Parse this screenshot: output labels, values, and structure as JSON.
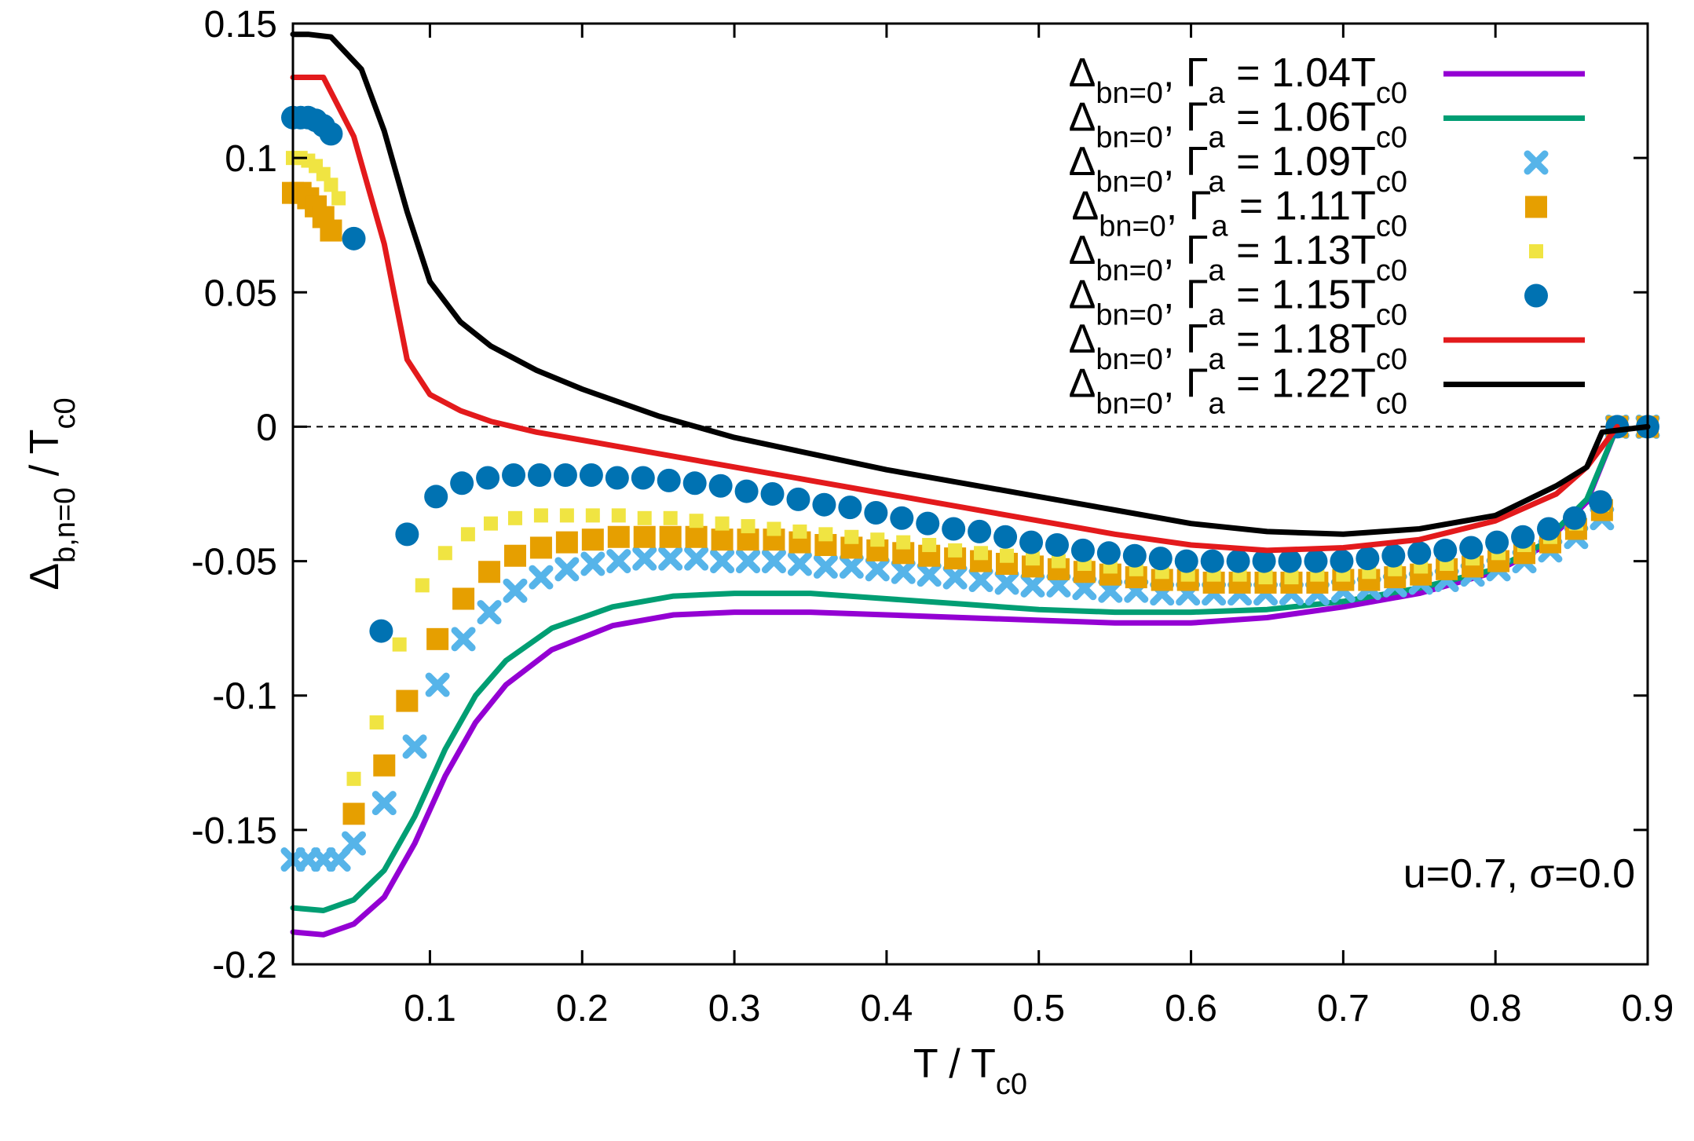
{
  "chart_data": {
    "type": "line",
    "xlabel": "T / T",
    "xlabel_sub": "c0",
    "ylabel": "Δ",
    "ylabel_sub": "b,n=0",
    "ylabel_tail": " / T",
    "ylabel_tail_sub": "c0",
    "xlim": [
      0.01,
      0.9
    ],
    "ylim": [
      -0.2,
      0.15
    ],
    "xticks": [
      0.1,
      0.2,
      0.3,
      0.4,
      0.5,
      0.6,
      0.7,
      0.8,
      0.9
    ],
    "xtick_labels": [
      "0.1",
      "0.2",
      "0.3",
      "0.4",
      "0.5",
      "0.6",
      "0.7",
      "0.8",
      "0.9"
    ],
    "yticks": [
      0.15,
      0.1,
      0.05,
      0,
      -0.05,
      -0.1,
      -0.15,
      -0.2
    ],
    "ytick_labels": [
      "0.15",
      "0.1",
      "0.05",
      "0",
      "-0.05",
      "-0.1",
      "-0.15",
      "-0.2"
    ],
    "zero_line": true,
    "annotation": "u=0.7, σ=0.0",
    "legend_position": "top-right",
    "series": [
      {
        "name": "Δbn=0, Γa = 1.04Tc0",
        "label_main": "Δ",
        "label_sub1": "bn=0",
        "label_mid": ", Γ",
        "label_sub2": "a",
        "label_val": " = 1.04T",
        "label_sub3": "c0",
        "style": "line",
        "color": "#9400d3",
        "x": [
          0.01,
          0.03,
          0.05,
          0.07,
          0.09,
          0.11,
          0.13,
          0.15,
          0.18,
          0.22,
          0.26,
          0.3,
          0.35,
          0.4,
          0.45,
          0.5,
          0.55,
          0.6,
          0.65,
          0.7,
          0.75,
          0.8,
          0.83,
          0.86,
          0.88
        ],
        "y": [
          -0.188,
          -0.189,
          -0.185,
          -0.175,
          -0.155,
          -0.13,
          -0.11,
          -0.096,
          -0.083,
          -0.074,
          -0.07,
          -0.069,
          -0.069,
          -0.07,
          -0.071,
          -0.072,
          -0.073,
          -0.073,
          -0.071,
          -0.067,
          -0.062,
          -0.054,
          -0.045,
          -0.028,
          0.0
        ]
      },
      {
        "name": "Δbn=0, Γa = 1.06Tc0",
        "label_main": "Δ",
        "label_sub1": "bn=0",
        "label_mid": ", Γ",
        "label_sub2": "a",
        "label_val": " = 1.06T",
        "label_sub3": "c0",
        "style": "line",
        "color": "#009e73",
        "x": [
          0.01,
          0.03,
          0.05,
          0.07,
          0.09,
          0.11,
          0.13,
          0.15,
          0.18,
          0.22,
          0.26,
          0.3,
          0.35,
          0.4,
          0.45,
          0.5,
          0.55,
          0.6,
          0.65,
          0.7,
          0.75,
          0.8,
          0.83,
          0.86,
          0.88
        ],
        "y": [
          -0.179,
          -0.18,
          -0.176,
          -0.165,
          -0.145,
          -0.12,
          -0.1,
          -0.087,
          -0.075,
          -0.067,
          -0.063,
          -0.062,
          -0.062,
          -0.064,
          -0.066,
          -0.068,
          -0.069,
          -0.069,
          -0.068,
          -0.065,
          -0.06,
          -0.053,
          -0.044,
          -0.027,
          0.0
        ]
      },
      {
        "name": "Δbn=0, Γa = 1.09Tc0",
        "label_main": "Δ",
        "label_sub1": "bn=0",
        "label_mid": ", Γ",
        "label_sub2": "a",
        "label_val": " = 1.09T",
        "label_sub3": "c0",
        "style": "cross",
        "color": "#56b4e9",
        "x": [
          0.01,
          0.02,
          0.03,
          0.04,
          0.05,
          0.07,
          0.09,
          0.105,
          0.122,
          0.139,
          0.156,
          0.173,
          0.19,
          0.207,
          0.224,
          0.241,
          0.258,
          0.275,
          0.292,
          0.309,
          0.326,
          0.343,
          0.36,
          0.377,
          0.394,
          0.411,
          0.428,
          0.445,
          0.462,
          0.479,
          0.496,
          0.513,
          0.53,
          0.547,
          0.564,
          0.581,
          0.598,
          0.615,
          0.632,
          0.649,
          0.666,
          0.683,
          0.7,
          0.717,
          0.734,
          0.751,
          0.768,
          0.785,
          0.802,
          0.819,
          0.836,
          0.853,
          0.87,
          0.88,
          0.9
        ],
        "y": [
          -0.161,
          -0.161,
          -0.161,
          -0.161,
          -0.155,
          -0.14,
          -0.119,
          -0.096,
          -0.079,
          -0.069,
          -0.061,
          -0.056,
          -0.053,
          -0.051,
          -0.05,
          -0.049,
          -0.049,
          -0.049,
          -0.05,
          -0.05,
          -0.05,
          -0.051,
          -0.052,
          -0.052,
          -0.053,
          -0.054,
          -0.055,
          -0.056,
          -0.057,
          -0.058,
          -0.059,
          -0.059,
          -0.06,
          -0.061,
          -0.061,
          -0.062,
          -0.062,
          -0.062,
          -0.062,
          -0.062,
          -0.062,
          -0.062,
          -0.061,
          -0.06,
          -0.059,
          -0.058,
          -0.057,
          -0.055,
          -0.053,
          -0.05,
          -0.046,
          -0.041,
          -0.034,
          0.0,
          0.0
        ]
      },
      {
        "name": "Δbn=0, Γa = 1.11Tc0",
        "label_main": "Δ",
        "label_sub1": "bn=0",
        "label_mid": ", Γ",
        "label_sub2": "a",
        "label_val": " = 1.11T",
        "label_sub3": "c0",
        "style": "square",
        "color": "#e69f00",
        "x": [
          0.01,
          0.015,
          0.02,
          0.025,
          0.03,
          0.035,
          0.05,
          0.07,
          0.085,
          0.105,
          0.122,
          0.139,
          0.156,
          0.173,
          0.19,
          0.207,
          0.224,
          0.241,
          0.258,
          0.275,
          0.292,
          0.309,
          0.326,
          0.343,
          0.36,
          0.377,
          0.394,
          0.411,
          0.428,
          0.445,
          0.462,
          0.479,
          0.496,
          0.513,
          0.53,
          0.547,
          0.564,
          0.581,
          0.598,
          0.615,
          0.632,
          0.649,
          0.666,
          0.683,
          0.7,
          0.717,
          0.734,
          0.751,
          0.768,
          0.785,
          0.802,
          0.819,
          0.836,
          0.853,
          0.87,
          0.88,
          0.9
        ],
        "y": [
          0.087,
          0.087,
          0.085,
          0.082,
          0.078,
          0.073,
          -0.144,
          -0.126,
          -0.102,
          -0.079,
          -0.064,
          -0.054,
          -0.048,
          -0.045,
          -0.043,
          -0.042,
          -0.041,
          -0.041,
          -0.041,
          -0.041,
          -0.042,
          -0.042,
          -0.042,
          -0.043,
          -0.044,
          -0.045,
          -0.046,
          -0.047,
          -0.048,
          -0.049,
          -0.05,
          -0.051,
          -0.052,
          -0.053,
          -0.054,
          -0.055,
          -0.056,
          -0.057,
          -0.057,
          -0.058,
          -0.058,
          -0.058,
          -0.058,
          -0.058,
          -0.057,
          -0.057,
          -0.056,
          -0.055,
          -0.053,
          -0.052,
          -0.05,
          -0.047,
          -0.043,
          -0.038,
          -0.031,
          0.0,
          0.0
        ]
      },
      {
        "name": "Δbn=0, Γa = 1.13Tc0",
        "label_main": "Δ",
        "label_sub1": "bn=0",
        "label_mid": ", Γ",
        "label_sub2": "a",
        "label_val": " = 1.13T",
        "label_sub3": "c0",
        "style": "small-square",
        "color": "#f0e442",
        "x": [
          0.01,
          0.015,
          0.02,
          0.025,
          0.03,
          0.035,
          0.04,
          0.05,
          0.065,
          0.08,
          0.095,
          0.11,
          0.125,
          0.14,
          0.156,
          0.173,
          0.19,
          0.207,
          0.224,
          0.241,
          0.258,
          0.275,
          0.292,
          0.309,
          0.326,
          0.343,
          0.36,
          0.377,
          0.394,
          0.411,
          0.428,
          0.445,
          0.462,
          0.479,
          0.496,
          0.513,
          0.53,
          0.547,
          0.564,
          0.581,
          0.598,
          0.615,
          0.632,
          0.649,
          0.666,
          0.683,
          0.7,
          0.717,
          0.734,
          0.751,
          0.768,
          0.785,
          0.802,
          0.819,
          0.836,
          0.853,
          0.87,
          0.9
        ],
        "y": [
          0.1,
          0.1,
          0.099,
          0.097,
          0.094,
          0.09,
          0.085,
          -0.131,
          -0.11,
          -0.081,
          -0.059,
          -0.047,
          -0.04,
          -0.036,
          -0.034,
          -0.033,
          -0.033,
          -0.033,
          -0.033,
          -0.034,
          -0.034,
          -0.035,
          -0.036,
          -0.037,
          -0.038,
          -0.039,
          -0.04,
          -0.041,
          -0.042,
          -0.043,
          -0.044,
          -0.046,
          -0.047,
          -0.048,
          -0.049,
          -0.05,
          -0.051,
          -0.052,
          -0.053,
          -0.054,
          -0.055,
          -0.055,
          -0.055,
          -0.056,
          -0.056,
          -0.055,
          -0.055,
          -0.054,
          -0.053,
          -0.052,
          -0.051,
          -0.049,
          -0.047,
          -0.044,
          -0.041,
          -0.036,
          -0.029,
          0.0
        ]
      },
      {
        "name": "Δbn=0, Γa = 1.15Tc0",
        "label_main": "Δ",
        "label_sub1": "bn=0",
        "label_mid": ", Γ",
        "label_sub2": "a",
        "label_val": " = 1.15T",
        "label_sub3": "c0",
        "style": "circle",
        "color": "#0072b2",
        "x": [
          0.01,
          0.015,
          0.02,
          0.025,
          0.03,
          0.035,
          0.05,
          0.068,
          0.085,
          0.104,
          0.121,
          0.138,
          0.155,
          0.172,
          0.189,
          0.206,
          0.223,
          0.24,
          0.257,
          0.274,
          0.291,
          0.308,
          0.325,
          0.342,
          0.359,
          0.376,
          0.393,
          0.41,
          0.427,
          0.444,
          0.461,
          0.478,
          0.495,
          0.512,
          0.529,
          0.546,
          0.563,
          0.58,
          0.597,
          0.614,
          0.631,
          0.648,
          0.665,
          0.682,
          0.699,
          0.716,
          0.733,
          0.75,
          0.767,
          0.784,
          0.801,
          0.818,
          0.835,
          0.852,
          0.869,
          0.88,
          0.9
        ],
        "y": [
          0.115,
          0.115,
          0.115,
          0.114,
          0.112,
          0.109,
          0.07,
          -0.076,
          -0.04,
          -0.026,
          -0.021,
          -0.019,
          -0.018,
          -0.018,
          -0.018,
          -0.018,
          -0.019,
          -0.019,
          -0.02,
          -0.021,
          -0.022,
          -0.024,
          -0.025,
          -0.027,
          -0.029,
          -0.03,
          -0.032,
          -0.034,
          -0.036,
          -0.038,
          -0.039,
          -0.041,
          -0.043,
          -0.044,
          -0.046,
          -0.047,
          -0.048,
          -0.049,
          -0.05,
          -0.05,
          -0.05,
          -0.05,
          -0.05,
          -0.05,
          -0.05,
          -0.049,
          -0.048,
          -0.047,
          -0.046,
          -0.045,
          -0.043,
          -0.041,
          -0.038,
          -0.034,
          -0.028,
          0.0,
          0.0
        ]
      },
      {
        "name": "Δbn=0, Γa = 1.18Tc0",
        "label_main": "Δ",
        "label_sub1": "bn=0",
        "label_mid": ", Γ",
        "label_sub2": "a",
        "label_val": " = 1.18T",
        "label_sub3": "c0",
        "style": "line",
        "color": "#e31a1c",
        "x": [
          0.01,
          0.03,
          0.05,
          0.07,
          0.085,
          0.1,
          0.12,
          0.14,
          0.17,
          0.2,
          0.25,
          0.3,
          0.35,
          0.4,
          0.45,
          0.5,
          0.55,
          0.6,
          0.65,
          0.7,
          0.75,
          0.8,
          0.84,
          0.86,
          0.88
        ],
        "y": [
          0.13,
          0.13,
          0.108,
          0.068,
          0.025,
          0.012,
          0.006,
          0.002,
          -0.002,
          -0.005,
          -0.01,
          -0.015,
          -0.02,
          -0.025,
          -0.03,
          -0.035,
          -0.04,
          -0.044,
          -0.046,
          -0.045,
          -0.042,
          -0.035,
          -0.025,
          -0.015,
          0.0
        ]
      },
      {
        "name": "Δbn=0, Γa = 1.22Tc0",
        "label_main": "Δ",
        "label_sub1": "bn=0",
        "label_mid": ", Γ",
        "label_sub2": "a",
        "label_val": " = 1.22T",
        "label_sub3": "c0",
        "style": "line",
        "color": "#000000",
        "x": [
          0.01,
          0.02,
          0.035,
          0.055,
          0.07,
          0.085,
          0.1,
          0.12,
          0.14,
          0.17,
          0.2,
          0.25,
          0.3,
          0.35,
          0.4,
          0.45,
          0.5,
          0.55,
          0.6,
          0.65,
          0.7,
          0.75,
          0.8,
          0.84,
          0.86,
          0.87,
          0.9
        ],
        "y": [
          0.146,
          0.146,
          0.145,
          0.133,
          0.11,
          0.08,
          0.054,
          0.039,
          0.03,
          0.021,
          0.014,
          0.004,
          -0.004,
          -0.01,
          -0.016,
          -0.021,
          -0.026,
          -0.031,
          -0.036,
          -0.039,
          -0.04,
          -0.038,
          -0.033,
          -0.022,
          -0.015,
          -0.002,
          0.0
        ]
      }
    ]
  }
}
